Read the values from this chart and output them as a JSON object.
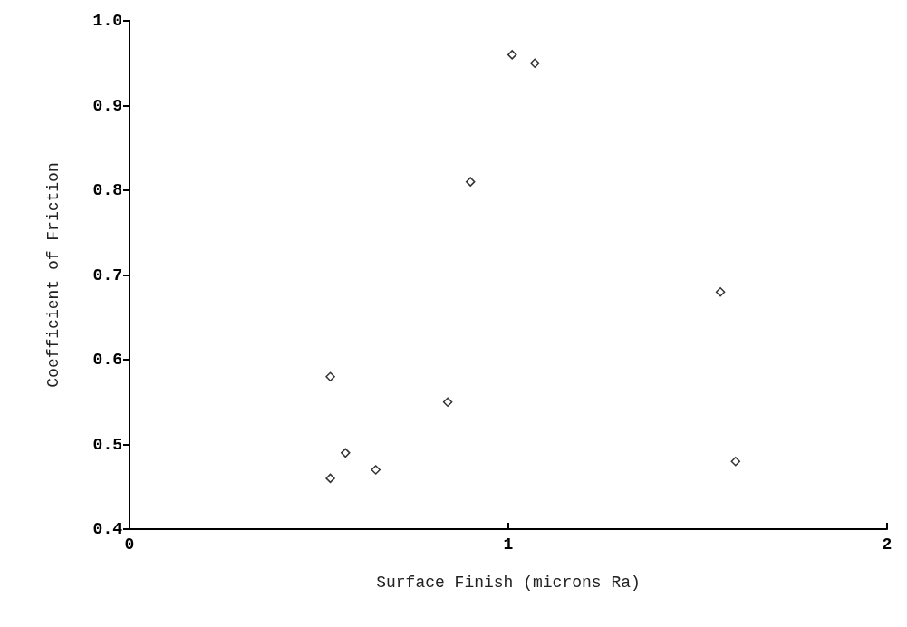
{
  "chart_data": {
    "type": "scatter",
    "xlabel": "Surface Finish (microns Ra)",
    "ylabel": "Coefficient of Friction",
    "x": [
      0.53,
      0.53,
      0.57,
      0.65,
      0.84,
      0.9,
      1.01,
      1.07,
      1.56,
      1.6
    ],
    "values": [
      0.58,
      0.46,
      0.49,
      0.47,
      0.55,
      0.81,
      0.96,
      0.95,
      0.68,
      0.48
    ],
    "color": "#000000",
    "marker": "diamond",
    "xlim": [
      0,
      2
    ],
    "xticks": [
      0,
      1,
      2
    ],
    "ylim": [
      0.4,
      1.0
    ],
    "yticks": [
      0.4,
      0.5,
      0.6,
      0.7,
      0.8,
      0.9,
      {
        "value": 1,
        "label": "1.0"
      }
    ],
    "grid": false
  }
}
